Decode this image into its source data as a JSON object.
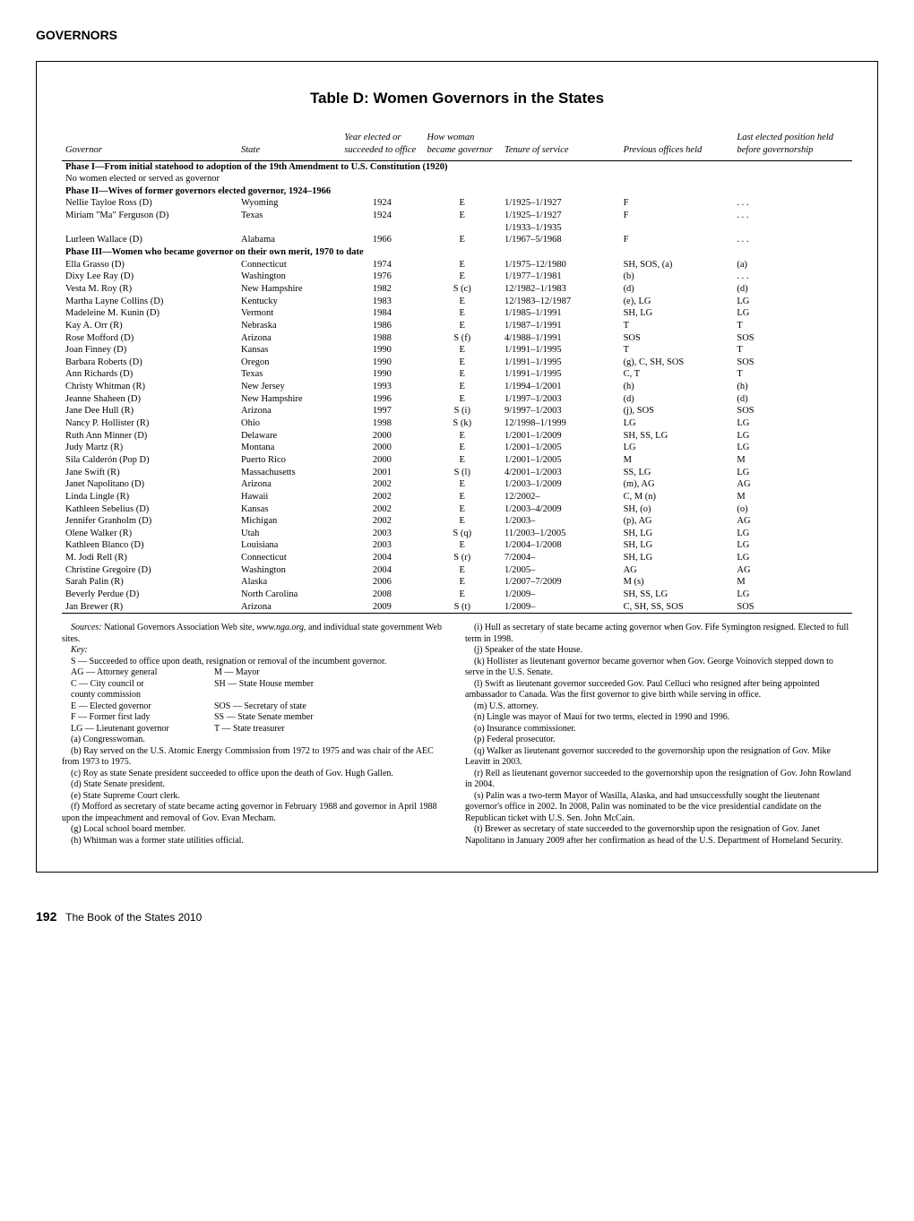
{
  "header": "GOVERNORS",
  "title": "Table D: Women Governors in the States",
  "columns": {
    "governor": "Governor",
    "state": "State",
    "year_elected": "Year elected or succeeded to office",
    "how_woman": "How woman became governor",
    "tenure": "Tenure of service",
    "previous": "Previous offices held",
    "last_elected": "Last elected position held before governorship"
  },
  "phases": [
    {
      "heading": "Phase I—From initial statehood to adoption of the 19th Amendment to U.S. Constitution (1920)",
      "sub": "No women elected or served as governor",
      "rows": []
    },
    {
      "heading": "Phase II—Wives of former governors elected governor, 1924–1966",
      "rows": [
        {
          "g": "Nellie Tayloe Ross (D)",
          "s": "Wyoming",
          "y": "1924",
          "h": "E",
          "t": "1/1925–1/1927",
          "p": "F",
          "l": ". . ."
        },
        {
          "g": "Miriam \"Ma\" Ferguson (D)",
          "s": "Texas",
          "y": "1924",
          "h": "E",
          "t": "1/1925–1/1927\n1/1933–1/1935",
          "p": "F",
          "l": ". . ."
        },
        {
          "g": "Lurleen Wallace (D)",
          "s": "Alabama",
          "y": "1966",
          "h": "E",
          "t": "1/1967–5/1968",
          "p": "F",
          "l": ". . ."
        }
      ]
    },
    {
      "heading": "Phase III—Women who became governor on their own merit, 1970 to date",
      "rows": [
        {
          "g": "Ella Grasso (D)",
          "s": "Connecticut",
          "y": "1974",
          "h": "E",
          "t": "1/1975–12/1980",
          "p": "SH, SOS, (a)",
          "l": "(a)"
        },
        {
          "g": "Dixy Lee Ray (D)",
          "s": "Washington",
          "y": "1976",
          "h": "E",
          "t": "1/1977–1/1981",
          "p": "(b)",
          "l": ". . ."
        },
        {
          "g": "Vesta M. Roy (R)",
          "s": "New Hampshire",
          "y": "1982",
          "h": "S (c)",
          "t": "12/1982–1/1983",
          "p": "(d)",
          "l": "(d)"
        },
        {
          "g": "Martha Layne Collins (D)",
          "s": "Kentucky",
          "y": "1983",
          "h": "E",
          "t": "12/1983–12/1987",
          "p": "(e), LG",
          "l": "LG"
        },
        {
          "g": "Madeleine M. Kunin (D)",
          "s": "Vermont",
          "y": "1984",
          "h": "E",
          "t": "1/1985–1/1991",
          "p": "SH, LG",
          "l": "LG"
        },
        {
          "g": "Kay A. Orr (R)",
          "s": "Nebraska",
          "y": "1986",
          "h": "E",
          "t": "1/1987–1/1991",
          "p": "T",
          "l": "T"
        },
        {
          "g": "Rose Mofford (D)",
          "s": "Arizona",
          "y": "1988",
          "h": "S (f)",
          "t": "4/1988–1/1991",
          "p": "SOS",
          "l": "SOS"
        },
        {
          "g": "Joan Finney (D)",
          "s": "Kansas",
          "y": "1990",
          "h": "E",
          "t": "1/1991–1/1995",
          "p": "T",
          "l": "T"
        },
        {
          "g": "Barbara Roberts (D)",
          "s": "Oregon",
          "y": "1990",
          "h": "E",
          "t": "1/1991–1/1995",
          "p": "(g), C, SH, SOS",
          "l": "SOS"
        },
        {
          "g": "Ann Richards (D)",
          "s": "Texas",
          "y": "1990",
          "h": "E",
          "t": "1/1991–1/1995",
          "p": "C, T",
          "l": "T"
        },
        {
          "g": "Christy Whitman (R)",
          "s": "New Jersey",
          "y": "1993",
          "h": "E",
          "t": "1/1994–1/2001",
          "p": "(h)",
          "l": "(h)"
        },
        {
          "g": "Jeanne Shaheen (D)",
          "s": "New Hampshire",
          "y": "1996",
          "h": "E",
          "t": "1/1997–1/2003",
          "p": "(d)",
          "l": "(d)"
        },
        {
          "g": "Jane Dee Hull (R)",
          "s": "Arizona",
          "y": "1997",
          "h": "S (i)",
          "t": "9/1997–1/2003",
          "p": "(j), SOS",
          "l": "SOS"
        },
        {
          "g": "Nancy P. Hollister (R)",
          "s": "Ohio",
          "y": "1998",
          "h": "S (k)",
          "t": "12/1998–1/1999",
          "p": "LG",
          "l": "LG"
        },
        {
          "g": "Ruth Ann Minner (D)",
          "s": "Delaware",
          "y": "2000",
          "h": "E",
          "t": "1/2001–1/2009",
          "p": "SH, SS, LG",
          "l": "LG"
        },
        {
          "g": "Judy Martz (R)",
          "s": "Montana",
          "y": "2000",
          "h": "E",
          "t": "1/2001–1/2005",
          "p": "LG",
          "l": "LG"
        },
        {
          "g": "Sila Calderón (Pop D)",
          "s": "Puerto Rico",
          "y": "2000",
          "h": "E",
          "t": "1/2001–1/2005",
          "p": "M",
          "l": "M"
        },
        {
          "g": "Jane Swift (R)",
          "s": "Massachusetts",
          "y": "2001",
          "h": "S (l)",
          "t": "4/2001–1/2003",
          "p": "SS, LG",
          "l": "LG"
        },
        {
          "g": "Janet Napolitano (D)",
          "s": "Arizona",
          "y": "2002",
          "h": "E",
          "t": "1/2003–1/2009",
          "p": "(m), AG",
          "l": "AG"
        },
        {
          "g": "Linda Lingle (R)",
          "s": "Hawaii",
          "y": "2002",
          "h": "E",
          "t": "12/2002–",
          "p": "C, M (n)",
          "l": "M"
        },
        {
          "g": "Kathleen Sebelius (D)",
          "s": "Kansas",
          "y": "2002",
          "h": "E",
          "t": "1/2003–4/2009",
          "p": "SH, (o)",
          "l": "(o)"
        },
        {
          "g": "Jennifer Granholm (D)",
          "s": "Michigan",
          "y": "2002",
          "h": "E",
          "t": "1/2003–",
          "p": "(p), AG",
          "l": "AG"
        },
        {
          "g": "Olene Walker (R)",
          "s": "Utah",
          "y": "2003",
          "h": "S (q)",
          "t": "11/2003–1/2005",
          "p": "SH, LG",
          "l": "LG"
        },
        {
          "g": "Kathleen Blanco (D)",
          "s": "Louisiana",
          "y": "2003",
          "h": "E",
          "t": "1/2004–1/2008",
          "p": "SH, LG",
          "l": "LG"
        },
        {
          "g": "M. Jodi Rell (R)",
          "s": "Connecticut",
          "y": "2004",
          "h": "S (r)",
          "t": "7/2004–",
          "p": "SH, LG",
          "l": "LG"
        },
        {
          "g": "Christine Gregoire (D)",
          "s": "Washington",
          "y": "2004",
          "h": "E",
          "t": "1/2005–",
          "p": "AG",
          "l": "AG"
        },
        {
          "g": "Sarah Palin (R)",
          "s": "Alaska",
          "y": "2006",
          "h": "E",
          "t": "1/2007–7/2009",
          "p": "M (s)",
          "l": "M"
        },
        {
          "g": "Beverly Perdue (D)",
          "s": "North Carolina",
          "y": "2008",
          "h": "E",
          "t": "1/2009–",
          "p": "SH, SS, LG",
          "l": "LG"
        },
        {
          "g": "Jan Brewer (R)",
          "s": "Arizona",
          "y": "2009",
          "h": "S (t)",
          "t": "1/2009–",
          "p": "C, SH, SS, SOS",
          "l": "SOS"
        }
      ]
    }
  ],
  "notes": {
    "sources": "Sources: National Governors Association Web site, www.nga.org, and individual state government Web sites.",
    "key_label": "Key:",
    "key_s": "S — Succeeded to office upon death, resignation or removal of the incumbent governor.",
    "key_cols": [
      [
        "AG — Attorney general",
        "M — Mayor"
      ],
      [
        "C — City council or",
        "SH — State House member"
      ],
      [
        "        county commission",
        ""
      ],
      [
        "E — Elected governor",
        "SOS — Secretary of state"
      ],
      [
        "F — Former first lady",
        "SS — State Senate member"
      ],
      [
        "LG — Lieutenant governor",
        "T — State treasurer"
      ]
    ],
    "letters": [
      "(a) Congresswoman.",
      "(b) Ray served on the U.S. Atomic Energy Commission from 1972 to 1975 and was chair of the AEC from 1973 to 1975.",
      "(c) Roy as state Senate president succeeded to office upon the death of Gov. Hugh Gallen.",
      "(d) State Senate president.",
      "(e) State Supreme Court clerk.",
      "(f) Mofford as secretary of state became acting governor in February 1988 and governor in April 1988 upon the impeachment and removal of Gov. Evan Mecham.",
      "(g) Local school board member.",
      "(h) Whitman was a former state utilities official.",
      "(i) Hull as secretary of state became acting governor when Gov. Fife Symington resigned. Elected to full term in 1998.",
      "(j) Speaker of the state House.",
      "(k) Hollister as lieutenant governor became governor when Gov. George Voinovich stepped down to serve in the U.S. Senate.",
      "(l) Swift as lieutenant governor succeeded Gov. Paul Celluci who resigned after being appointed ambassador to Canada. Was the first governor to give birth while serving in office.",
      "(m) U.S. attorney.",
      "(n) Lingle was mayor of Maui for two terms, elected in 1990 and 1996.",
      "(o) Insurance commissioner.",
      "(p) Federal prosecutor.",
      "(q) Walker as lieutenant governor succeeded to the governorship upon the resignation of Gov. Mike Leavitt in 2003.",
      "(r) Rell as lieutenant governor succeeded to the governorship upon the resignation of Gov. John Rowland in 2004.",
      "(s) Palin was a two-term Mayor of Wasilla, Alaska, and had unsuccessfully sought the lieutenant governor's office in 2002. In 2008, Palin was nominated to be the vice presidential candidate on the Republican ticket with U.S. Sen. John McCain.",
      "(t) Brewer as secretary of state succeeded to the governorship upon the resignation of Gov. Janet Napolitano in January 2009 after her confirmation as head of the U.S. Department of Homeland Security."
    ]
  },
  "footer": {
    "page": "192",
    "book": "The Book of the States 2010"
  }
}
